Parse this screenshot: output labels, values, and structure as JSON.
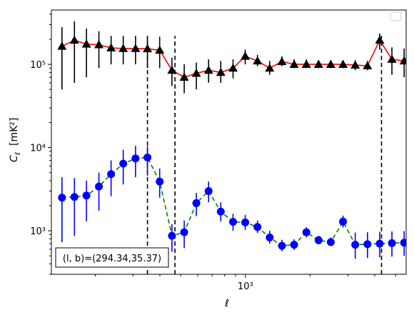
{
  "chart_data": {
    "type": "scatter",
    "xlabel": "ℓ",
    "ylabel_main": "C",
    "ylabel_sub": "ℓ",
    "ylabel_unit": "[mK²]",
    "x_scale": "log",
    "y_scale": "log",
    "xlim": [
      125,
      5600
    ],
    "ylim": [
      300,
      450000
    ],
    "x_tick_labels": [
      {
        "value": 1000,
        "label": "10³"
      }
    ],
    "y_tick_labels": [
      {
        "value": 1000,
        "label": "10³"
      },
      {
        "value": 10000,
        "label": "10⁴"
      },
      {
        "value": 100000,
        "label": "10⁵"
      }
    ],
    "legend": {
      "position": "top-right",
      "entries": []
    },
    "annotation": "(l, b)=(294.34,35.37)",
    "vlines": {
      "values": [
        350,
        470,
        4300
      ],
      "color": "#000000",
      "style": "dashed"
    },
    "series": [
      {
        "marker": "triangle",
        "marker_color": "#000000",
        "line_color": "#ff0000",
        "line_style": "solid",
        "x": [
          140,
          160,
          182,
          208,
          237,
          270,
          308,
          350,
          399,
          455,
          519,
          591,
          674,
          768,
          876,
          998,
          1138,
          1297,
          1479,
          1686,
          1922,
          2191,
          2497,
          2847,
          3245,
          3700,
          4218,
          4808,
          5481
        ],
        "y": [
          165000,
          195000,
          175000,
          172000,
          158000,
          155000,
          155000,
          154000,
          148000,
          85000,
          70000,
          78000,
          85000,
          80000,
          90000,
          125000,
          110000,
          90000,
          108000,
          100000,
          100000,
          100000,
          100000,
          100000,
          98000,
          96000,
          195000,
          115000,
          110000
        ],
        "err_low": [
          50000,
          60000,
          70000,
          90000,
          100000,
          100000,
          100000,
          90000,
          90000,
          55000,
          45000,
          50000,
          60000,
          60000,
          68000,
          100000,
          95000,
          75000,
          95000,
          90000,
          90000,
          90000,
          90000,
          90000,
          85000,
          85000,
          150000,
          75000,
          70000
        ],
        "err_high": [
          280000,
          330000,
          270000,
          250000,
          220000,
          220000,
          220000,
          215000,
          215000,
          120000,
          100000,
          105000,
          115000,
          110000,
          115000,
          150000,
          130000,
          110000,
          125000,
          115000,
          115000,
          112000,
          112000,
          112000,
          112000,
          110000,
          235000,
          160000,
          155000
        ]
      },
      {
        "marker": "circle",
        "marker_color": "#0000ff",
        "line_color": "#008000",
        "line_style": "dashed",
        "x": [
          140,
          160,
          182,
          208,
          237,
          270,
          308,
          350,
          399,
          455,
          519,
          591,
          674,
          768,
          876,
          998,
          1138,
          1297,
          1479,
          1686,
          1922,
          2191,
          2497,
          2847,
          3245,
          3700,
          4218,
          4808,
          5481
        ],
        "y": [
          2500,
          2550,
          2650,
          3400,
          4800,
          6400,
          7400,
          7600,
          3900,
          870,
          960,
          2150,
          3000,
          1700,
          1280,
          1260,
          1110,
          830,
          660,
          680,
          960,
          770,
          730,
          1290,
          680,
          690,
          700,
          710,
          720
        ],
        "err_low": [
          730,
          870,
          1300,
          1750,
          2600,
          3600,
          4400,
          4600,
          2500,
          560,
          620,
          1500,
          2200,
          1300,
          1000,
          1020,
          940,
          700,
          570,
          590,
          830,
          690,
          660,
          1090,
          460,
          470,
          480,
          490,
          500
        ],
        "err_high": [
          4400,
          4300,
          4000,
          5000,
          7000,
          9400,
          10500,
          10400,
          5600,
          1200,
          1330,
          2850,
          3900,
          2200,
          1600,
          1550,
          1330,
          1000,
          780,
          790,
          1100,
          870,
          830,
          1520,
          950,
          960,
          970,
          980,
          990
        ]
      }
    ]
  }
}
